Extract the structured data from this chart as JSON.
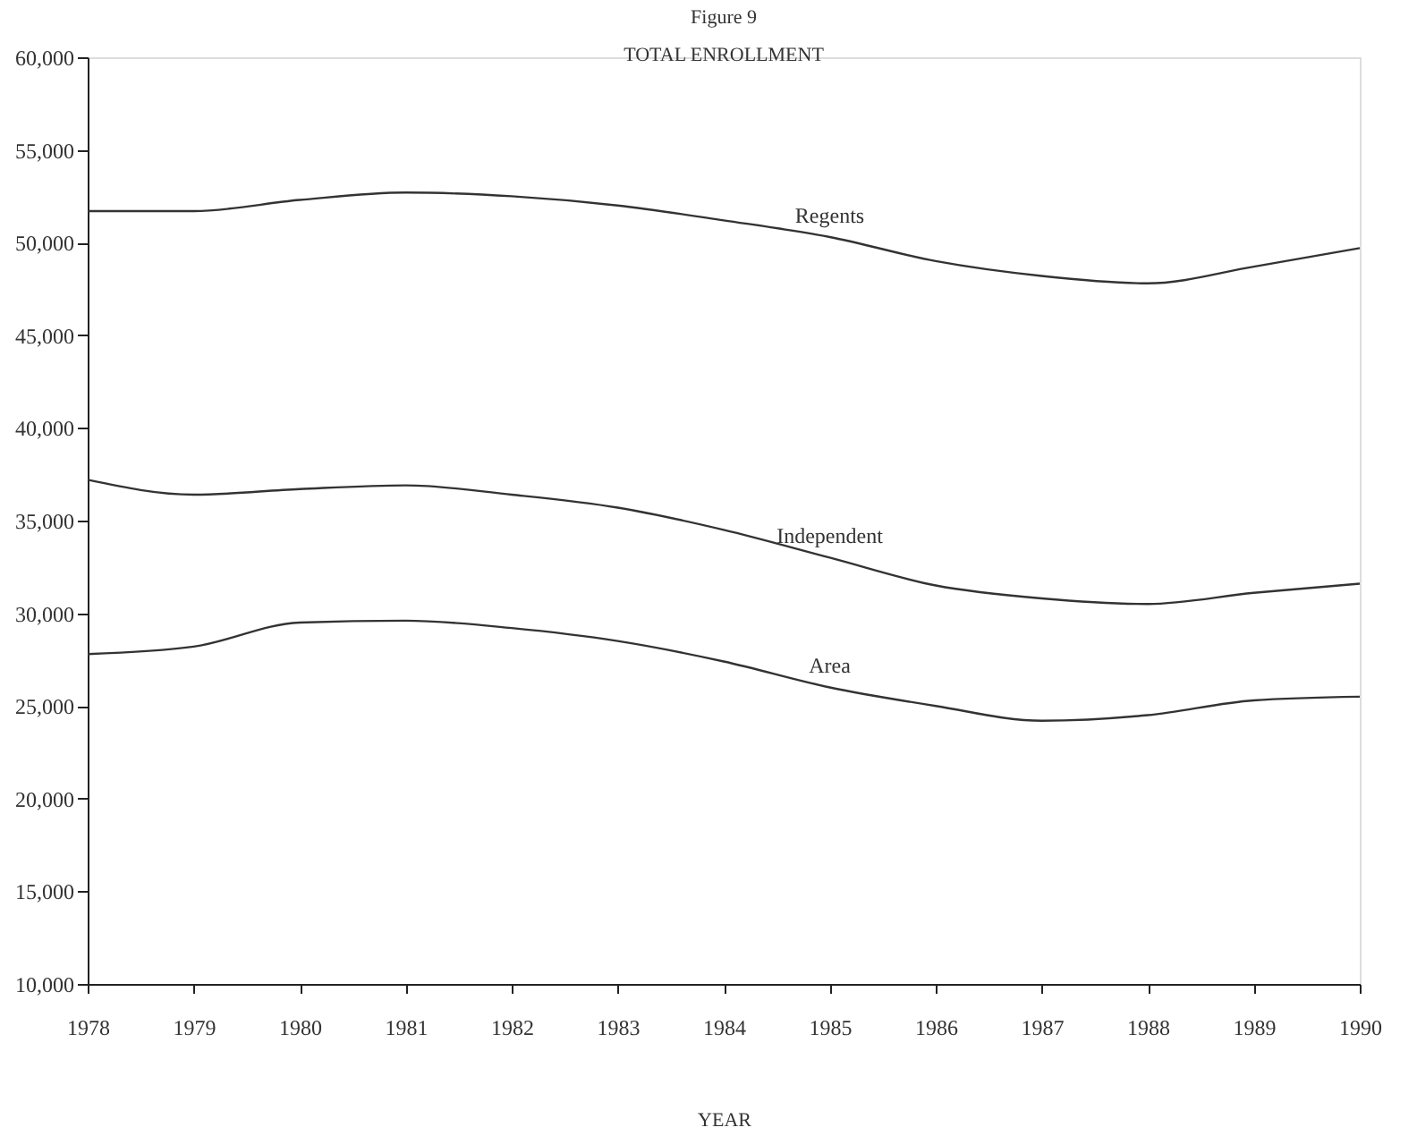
{
  "chart_data": {
    "type": "line",
    "title": "Figure 9",
    "subtitle": "TOTAL ENROLLMENT",
    "xlabel": "YEAR",
    "x": [
      1978,
      1979,
      1980,
      1981,
      1982,
      1983,
      1984,
      1985,
      1986,
      1987,
      1988,
      1989,
      1990
    ],
    "series": [
      {
        "name": "Regents",
        "color": "#333333",
        "values": [
          51700,
          51700,
          52300,
          52700,
          52500,
          52000,
          51200,
          50300,
          49000,
          48200,
          47800,
          48700,
          49700
        ]
      },
      {
        "name": "Independent",
        "color": "#333333",
        "values": [
          37200,
          36400,
          36700,
          36900,
          36400,
          35700,
          34500,
          33000,
          31500,
          30800,
          30500,
          31100,
          31600
        ]
      },
      {
        "name": "Area",
        "color": "#333333",
        "values": [
          27800,
          28200,
          29500,
          29600,
          29200,
          28500,
          27400,
          26000,
          25000,
          24200,
          24500,
          25300,
          25500
        ]
      }
    ],
    "xlim": [
      1978,
      1990
    ],
    "xticks": [
      1978,
      1979,
      1980,
      1981,
      1982,
      1983,
      1984,
      1985,
      1986,
      1987,
      1988,
      1989,
      1990
    ],
    "ylim": [
      10000,
      60000
    ],
    "yticks": [
      {
        "value": 10000,
        "label": "10,000"
      },
      {
        "value": 15000,
        "label": "15,000"
      },
      {
        "value": 20000,
        "label": "20,000"
      },
      {
        "value": 25000,
        "label": "25,000"
      },
      {
        "value": 30000,
        "label": "30,000"
      },
      {
        "value": 35000,
        "label": "35,000"
      },
      {
        "value": 40000,
        "label": "40,000"
      },
      {
        "value": 45000,
        "label": "45,000"
      },
      {
        "value": 50000,
        "label": "50,000"
      },
      {
        "value": 55000,
        "label": "55,000"
      },
      {
        "value": 60000,
        "label": "60,000"
      }
    ],
    "grid": false,
    "legend": false,
    "marker": "none",
    "line_style": "solid"
  }
}
